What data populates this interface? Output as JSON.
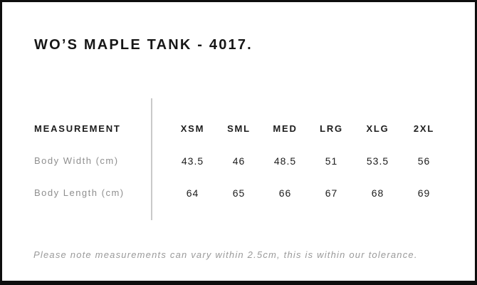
{
  "title": "WO’S MAPLE TANK - 4017.",
  "table": {
    "measurement_header": "MEASUREMENT",
    "columns": [
      "XSM",
      "SML",
      "MED",
      "LRG",
      "XLG",
      "2XL"
    ],
    "rows": [
      {
        "label": "Body Width (cm)",
        "values": [
          "43.5",
          "46",
          "48.5",
          "51",
          "53.5",
          "56"
        ]
      },
      {
        "label": "Body Length (cm)",
        "values": [
          "64",
          "65",
          "66",
          "67",
          "68",
          "69"
        ]
      }
    ]
  },
  "note": "Please note measurements can vary within 2.5cm, this is within our tolerance.",
  "colors": {
    "frame": "#0e0e0e",
    "text": "#1d1d1d",
    "muted_label": "#8f8f8f",
    "note_gray": "#9a9a9a",
    "divider": "#c9c9c9"
  }
}
